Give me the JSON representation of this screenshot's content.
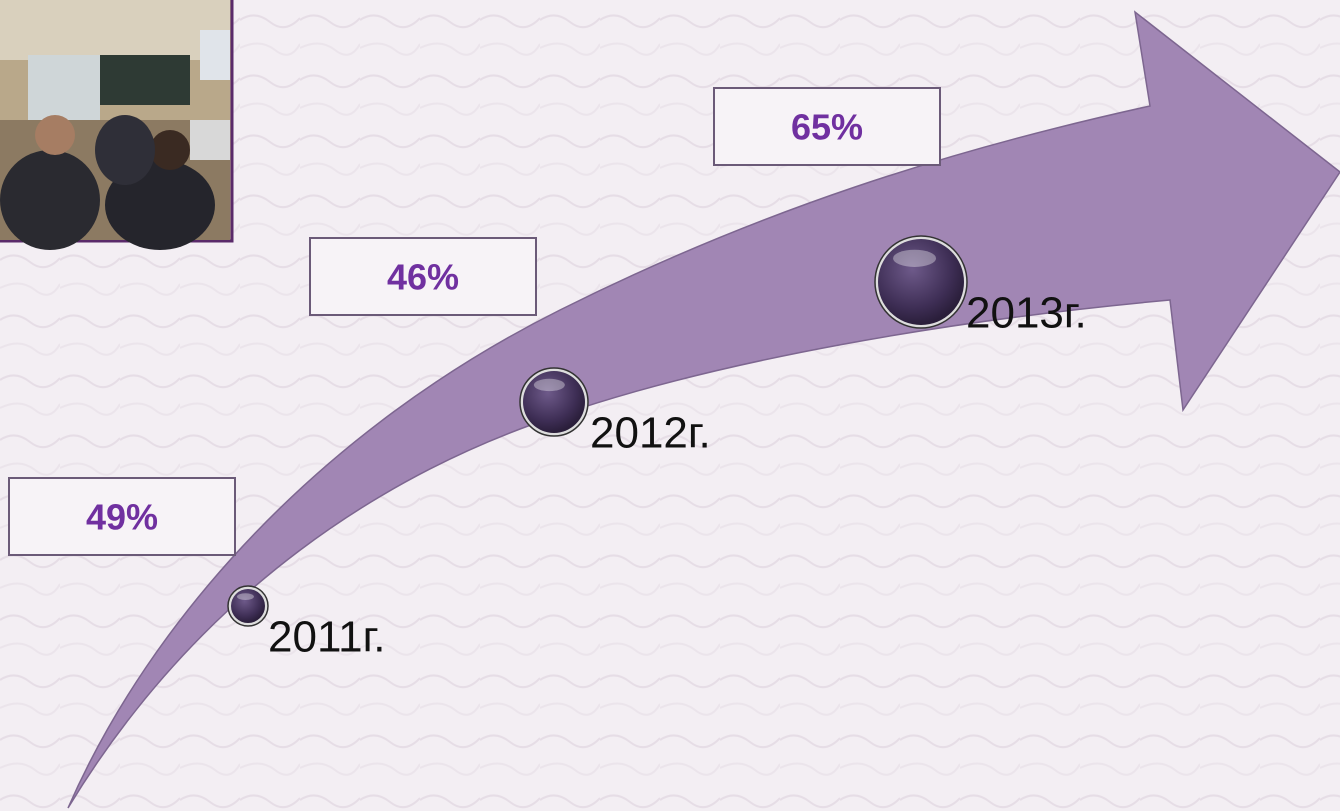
{
  "milestones": [
    {
      "year": "2011г.",
      "percent": "49%"
    },
    {
      "year": "2012г.",
      "percent": "46%"
    },
    {
      "year": "2013г.",
      "percent": "65%"
    }
  ]
}
